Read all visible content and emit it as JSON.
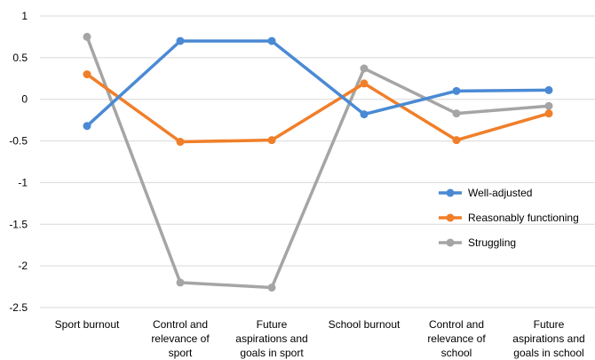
{
  "chart_data": {
    "type": "line",
    "categories": [
      [
        "Sport burnout"
      ],
      [
        "Control and",
        "relevance of",
        "sport"
      ],
      [
        "Future",
        "aspirations and",
        "goals in sport"
      ],
      [
        "School burnout"
      ],
      [
        "Control and",
        "relevance of",
        "school"
      ],
      [
        "Future",
        "aspirations and",
        "goals in school"
      ]
    ],
    "series": [
      {
        "name": "Well-adjusted",
        "color": "#4a8ad4",
        "values": [
          -0.32,
          0.7,
          0.7,
          -0.18,
          0.1,
          0.11
        ]
      },
      {
        "name": "Reasonably functioning",
        "color": "#f07f2a",
        "values": [
          0.3,
          -0.51,
          -0.49,
          0.19,
          -0.49,
          -0.17
        ]
      },
      {
        "name": "Struggling",
        "color": "#a5a5a5",
        "values": [
          0.75,
          -2.2,
          -2.26,
          0.37,
          -0.17,
          -0.08
        ]
      }
    ],
    "yticks": [
      "1",
      "0.5",
      "0",
      "-0.5",
      "-1",
      "-1.5",
      "-2",
      "-2.5"
    ],
    "ylim": [
      -2.5,
      1
    ],
    "grid": true,
    "legend": "right"
  }
}
